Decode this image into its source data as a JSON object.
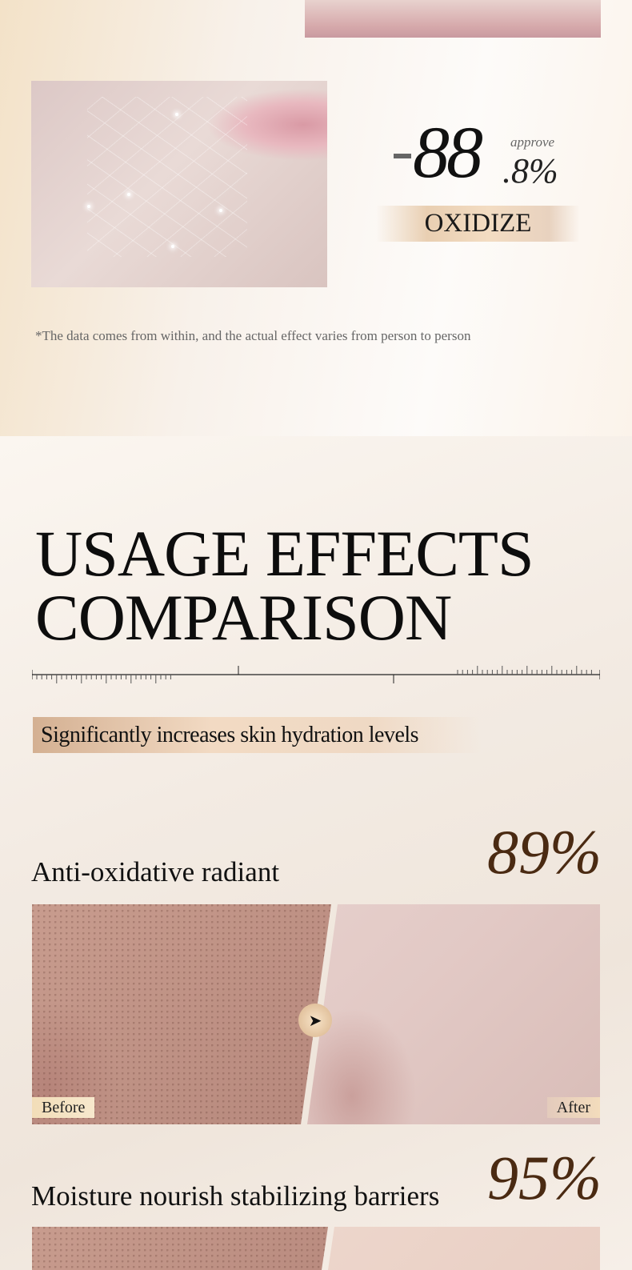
{
  "stat": {
    "sign": "-",
    "value": "88",
    "decimal": ".8%",
    "qualifier": "approve",
    "label": "OXIDIZE"
  },
  "note": "*The data comes from within, and the actual effect varies from person to person",
  "section": {
    "title_line1": "USAGE EFFECTS",
    "title_line2": "COMPARISON",
    "subtitle": "Significantly increases skin hydration levels"
  },
  "comparisons": [
    {
      "label": "Anti-oxidative radiant",
      "percent": "89%",
      "before": "Before",
      "after": "After"
    },
    {
      "label": "Moisture nourish stabilizing barriers",
      "percent": "95%"
    }
  ],
  "colors": {
    "accent": "#4a2a12",
    "band": "#e9cfb2"
  }
}
